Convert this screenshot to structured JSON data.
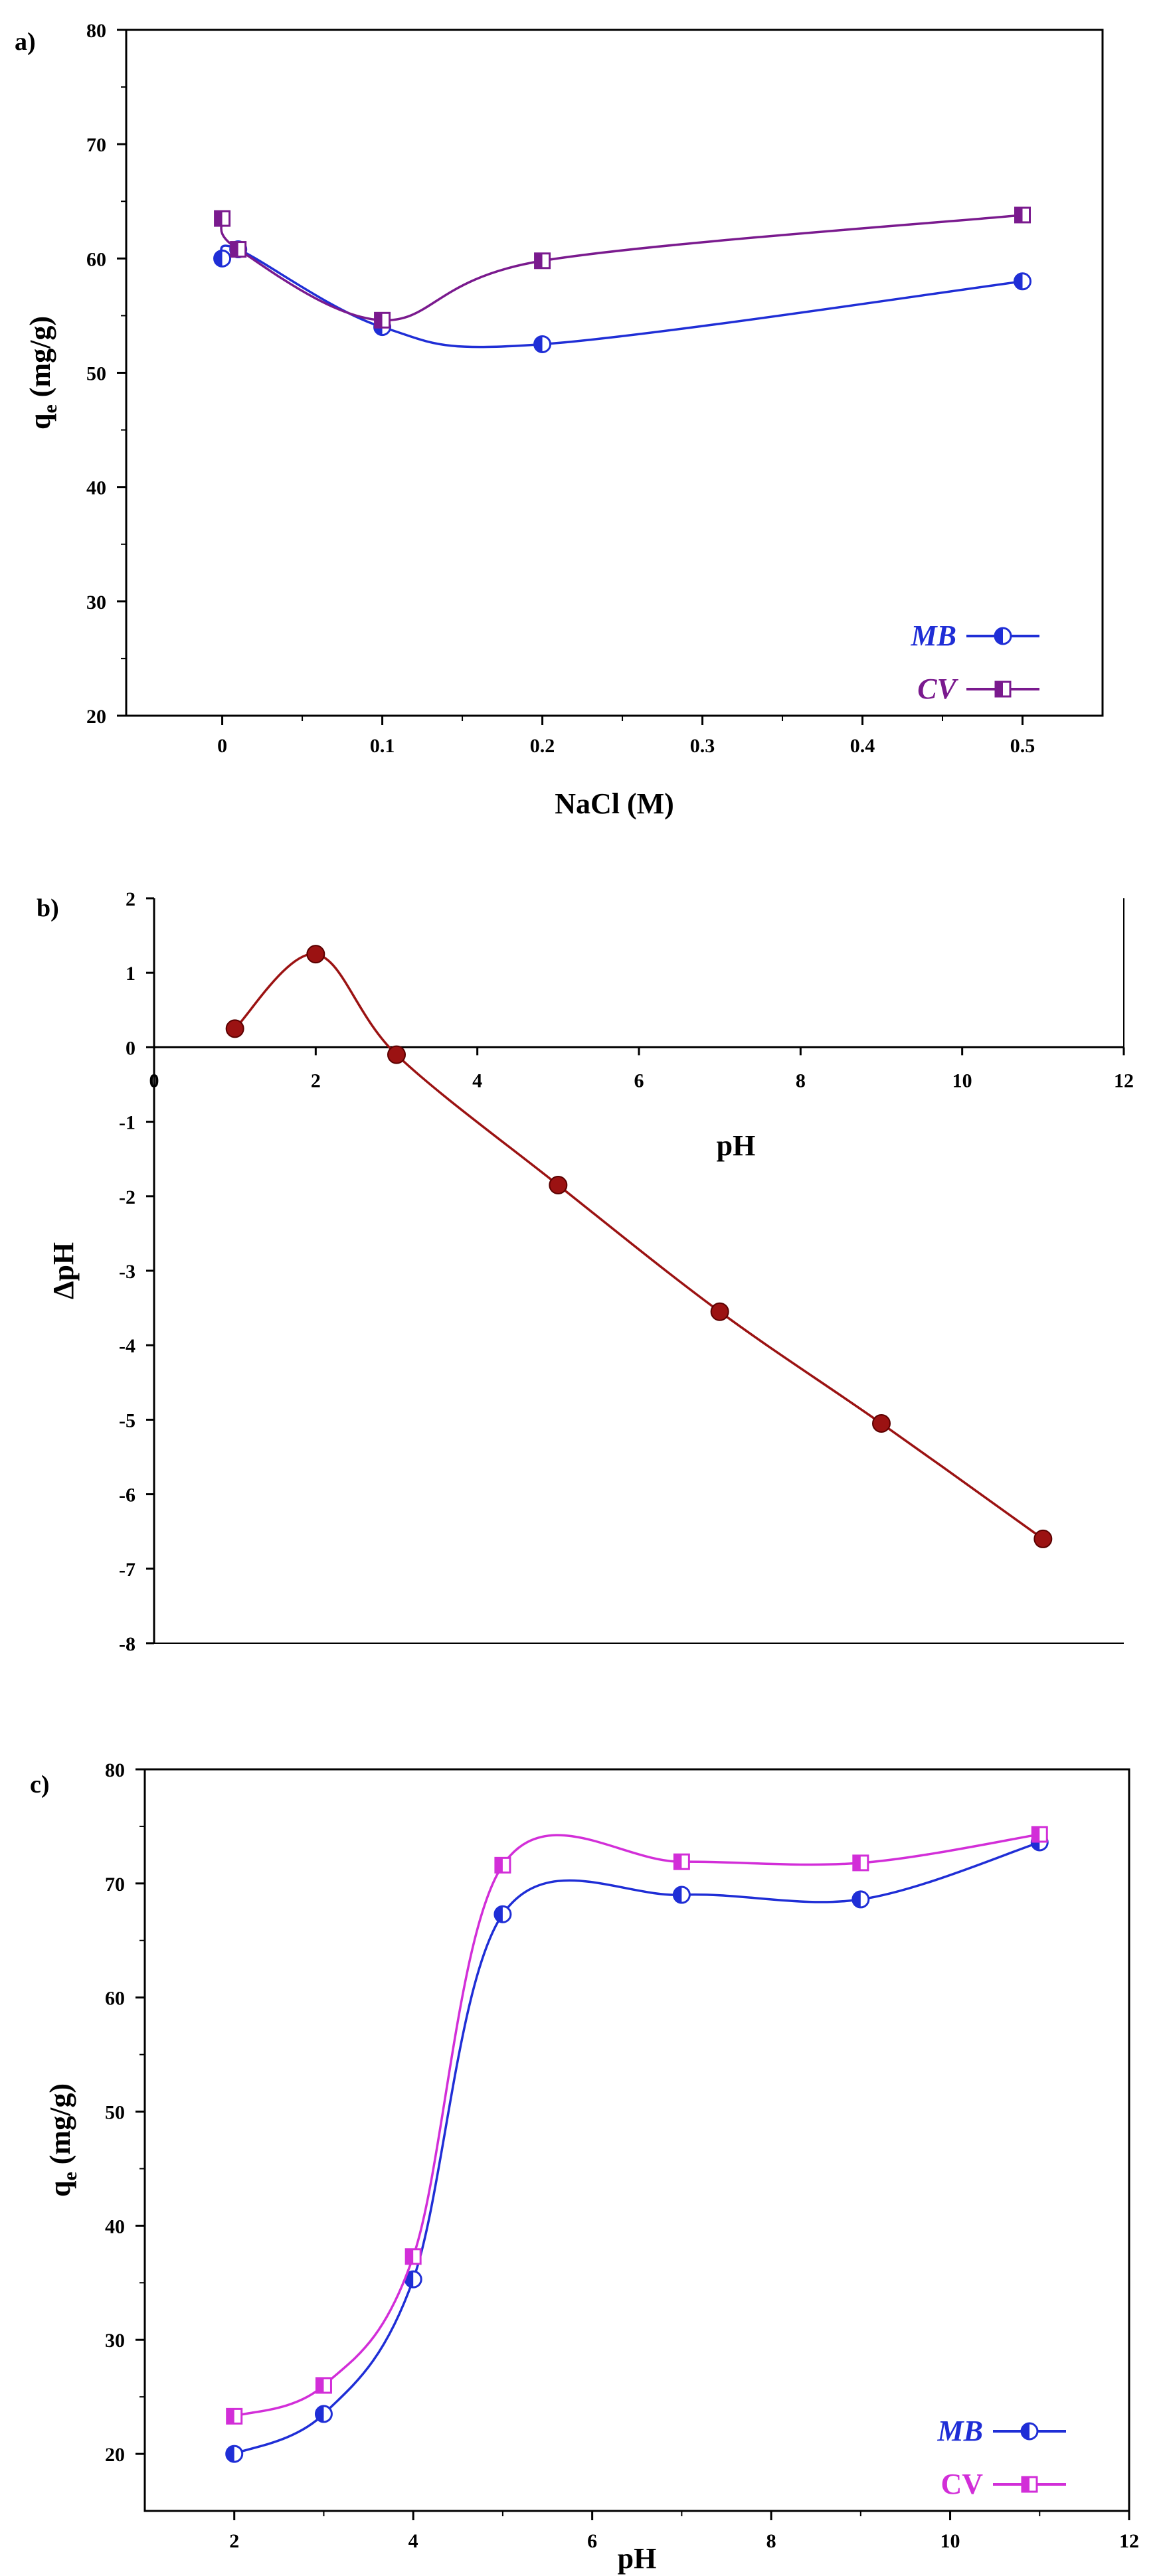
{
  "chart_data": [
    {
      "type": "line",
      "panel_label": "a)",
      "xlabel": "NaCl (M)",
      "ylabel": "qe (mg/g)",
      "ylabel_main": "q",
      "ylabel_sub": "e",
      "ylabel_rest": " (mg/g)",
      "xlim": [
        -0.06,
        0.55
      ],
      "ylim": [
        20,
        80
      ],
      "xticks": [
        0,
        0.1,
        0.2,
        0.3,
        0.4,
        0.5
      ],
      "xtick_labels": [
        "0",
        "0.1",
        "0.2",
        "0.3",
        "0.4",
        "0.5"
      ],
      "yticks": [
        20,
        30,
        40,
        50,
        60,
        70,
        80
      ],
      "ytick_labels": [
        "20",
        "30",
        "40",
        "50",
        "60",
        "70",
        "80"
      ],
      "legend_position": "bottom-right",
      "series": [
        {
          "name": "MB",
          "color": "#1f2ed6",
          "marker": "circle",
          "x": [
            0,
            0.01,
            0.1,
            0.2,
            0.5
          ],
          "y": [
            60.0,
            60.8,
            54.0,
            52.5,
            58.0
          ]
        },
        {
          "name": "CV",
          "color": "#7a1a8e",
          "marker": "square",
          "x": [
            0,
            0.01,
            0.1,
            0.2,
            0.5
          ],
          "y": [
            63.5,
            60.8,
            54.6,
            59.8,
            63.8
          ]
        }
      ]
    },
    {
      "type": "line",
      "panel_label": "b)",
      "xlabel": "pH",
      "ylabel": "ΔpH",
      "xlim": [
        0,
        12
      ],
      "ylim": [
        -8,
        2
      ],
      "xticks": [
        0,
        2,
        4,
        6,
        8,
        10,
        12
      ],
      "xtick_labels": [
        "0",
        "2",
        "4",
        "6",
        "8",
        "10",
        "12"
      ],
      "yticks": [
        2,
        1,
        0,
        -1,
        -2,
        -3,
        -4,
        -5,
        -6,
        -7,
        -8
      ],
      "ytick_labels": [
        "2",
        "1",
        "0",
        "-1",
        "-2",
        "-3",
        "-4",
        "-5",
        "-6",
        "-7",
        "-8"
      ],
      "series": [
        {
          "name": "ΔpH",
          "color": "#9b1212",
          "marker": "filled-circle",
          "x": [
            1,
            2,
            3,
            5,
            7,
            9,
            11
          ],
          "y": [
            0.25,
            1.25,
            -0.1,
            -1.85,
            -3.55,
            -5.05,
            -6.6
          ]
        }
      ]
    },
    {
      "type": "line",
      "panel_label": "c)",
      "xlabel": "pH",
      "ylabel": "qe (mg/g)",
      "ylabel_main": "q",
      "ylabel_sub": "e",
      "ylabel_rest": " (mg/g)",
      "xlim": [
        1,
        12
      ],
      "ylim": [
        15,
        80
      ],
      "xticks": [
        2,
        4,
        6,
        8,
        10,
        12
      ],
      "xtick_labels": [
        "2",
        "4",
        "6",
        "8",
        "10",
        "12"
      ],
      "yticks": [
        20,
        30,
        40,
        50,
        60,
        70,
        80
      ],
      "ytick_labels": [
        "20",
        "30",
        "40",
        "50",
        "60",
        "70",
        "80"
      ],
      "legend_position": "bottom-right",
      "series": [
        {
          "name": "MB",
          "color": "#1f2ed6",
          "marker": "circle",
          "x": [
            2,
            3,
            4,
            5,
            7,
            9,
            11
          ],
          "y": [
            20.0,
            23.5,
            35.3,
            67.3,
            69.0,
            68.6,
            73.6
          ]
        },
        {
          "name": "CV",
          "color": "#d22ed8",
          "marker": "square",
          "x": [
            2,
            3,
            4,
            5,
            7,
            9,
            11
          ],
          "y": [
            23.3,
            26.0,
            37.3,
            71.6,
            71.9,
            71.8,
            74.3
          ]
        }
      ]
    }
  ]
}
